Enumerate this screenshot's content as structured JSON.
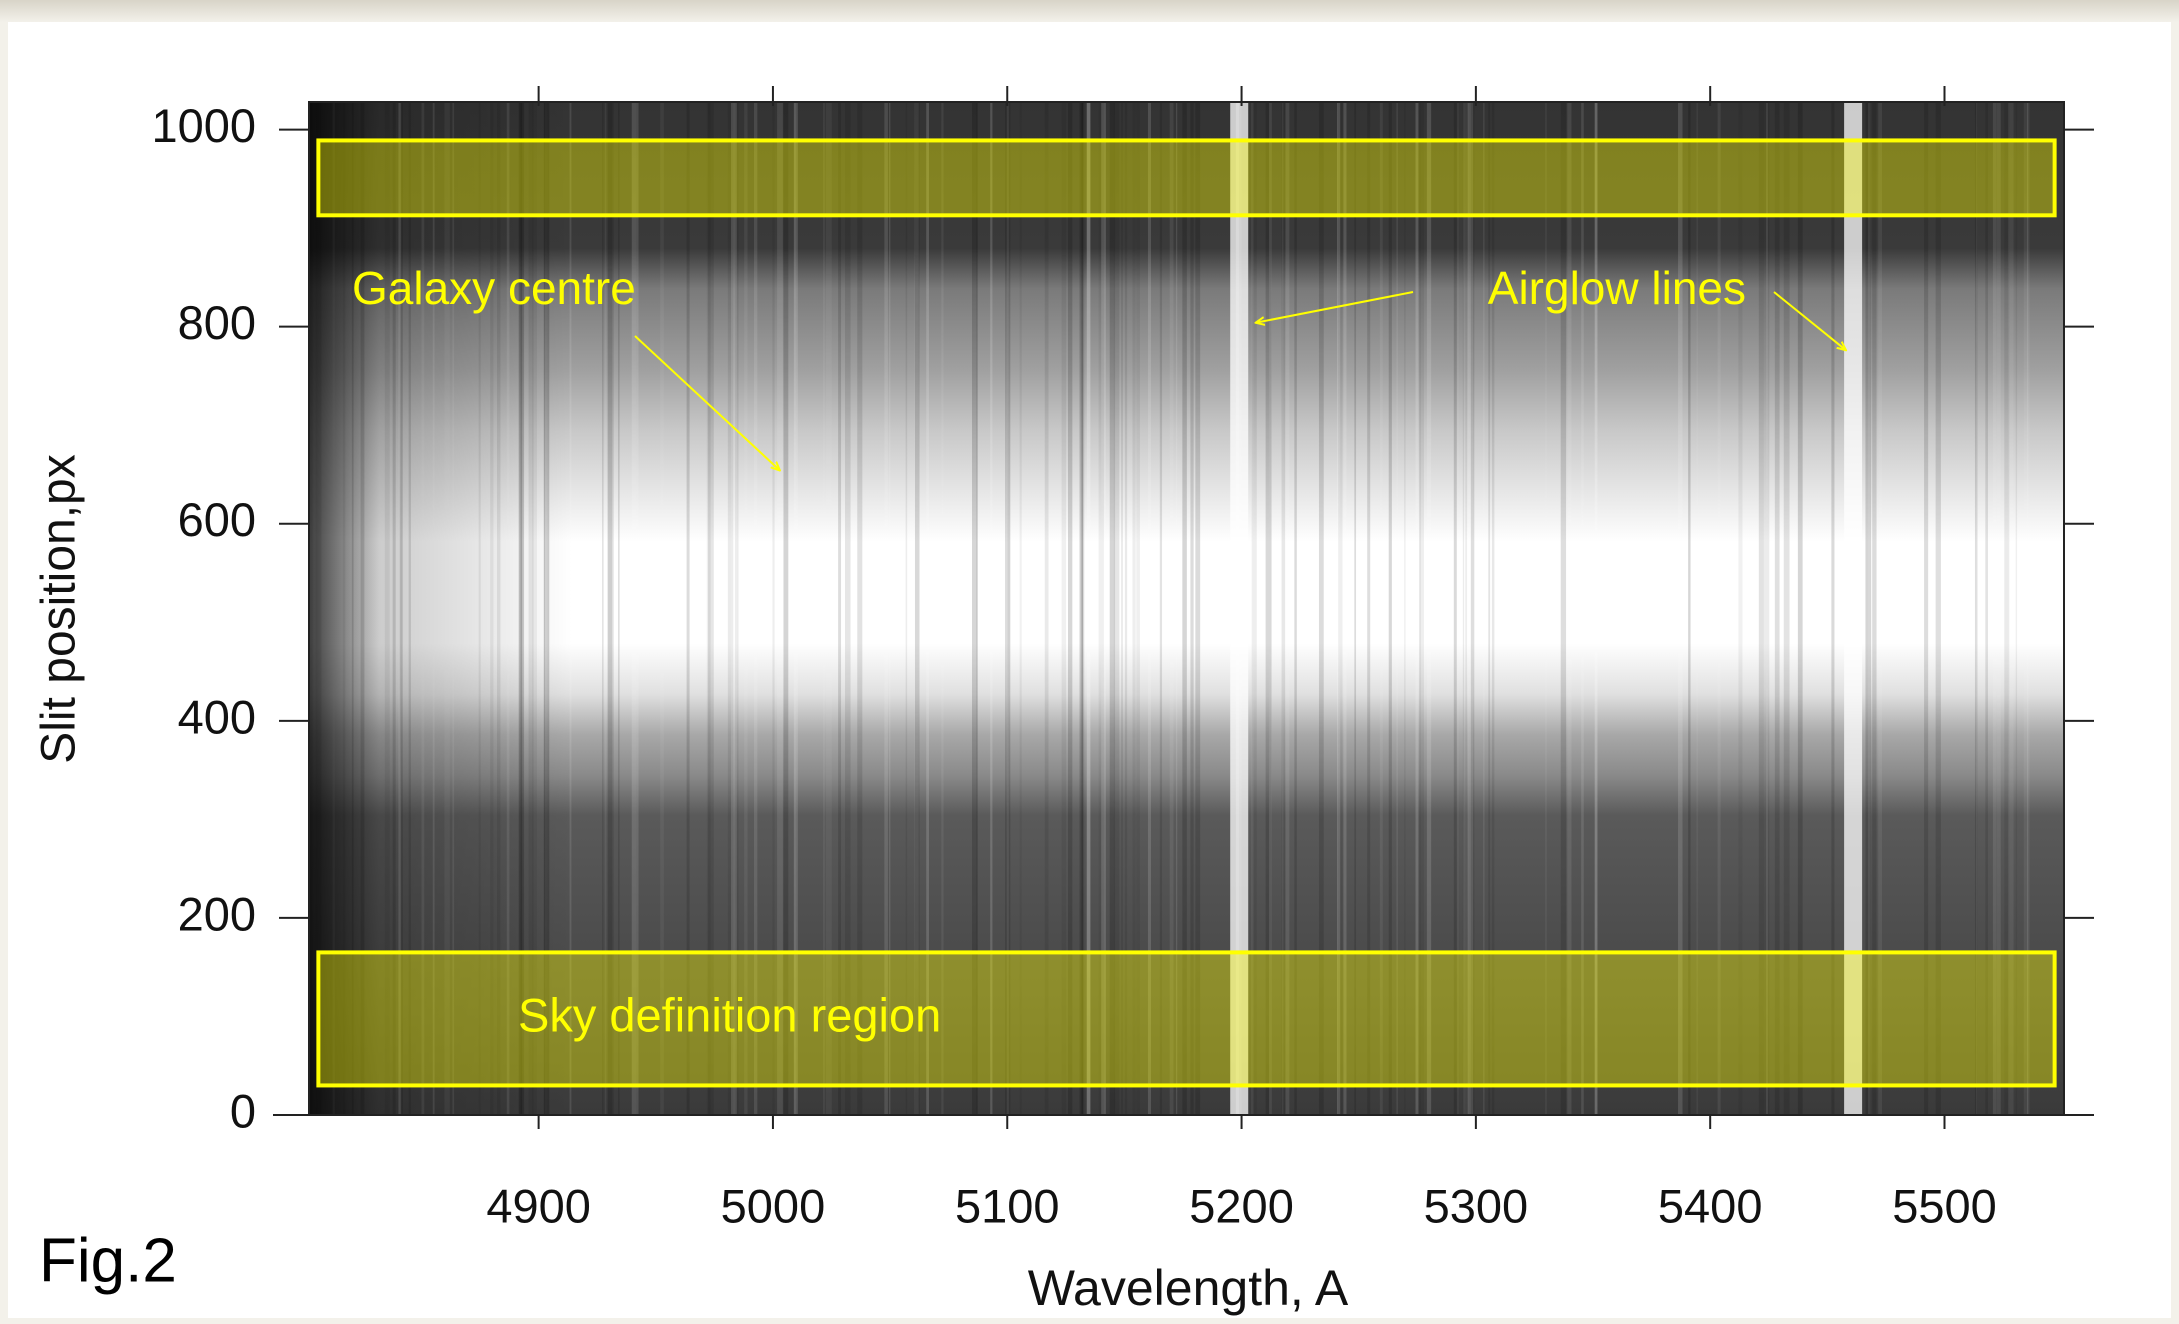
{
  "chart_data": {
    "type": "spectrum-image",
    "figure_label": "Fig.2",
    "x_label": "Wavelength, A",
    "y_label": "Slit position,px",
    "xlim": [
      4802,
      5551
    ],
    "xticks": [
      4900,
      5000,
      5100,
      5200,
      5300,
      5400,
      5500
    ],
    "ylim": [
      0,
      1028
    ],
    "yticks": [
      0,
      200,
      400,
      600,
      800,
      1000
    ],
    "galaxy_centre_row": 530,
    "airglow_lines": [
      5199,
      5461
    ],
    "regions": [
      {
        "xlim": [
          4806,
          5547
        ],
        "ylim": [
          913,
          989
        ]
      },
      {
        "label": "Sky definition region",
        "xlim": [
          4806,
          5547
        ],
        "ylim": [
          30,
          165
        ]
      }
    ],
    "region_color": "#ffff00",
    "annotations": [
      {
        "text": "Galaxy centre",
        "targets": [
          [
            5003,
            654
          ]
        ]
      },
      {
        "text": "Airglow lines",
        "targets": [
          [
            5206,
            804
          ],
          [
            5458,
            776
          ]
        ]
      }
    ]
  }
}
